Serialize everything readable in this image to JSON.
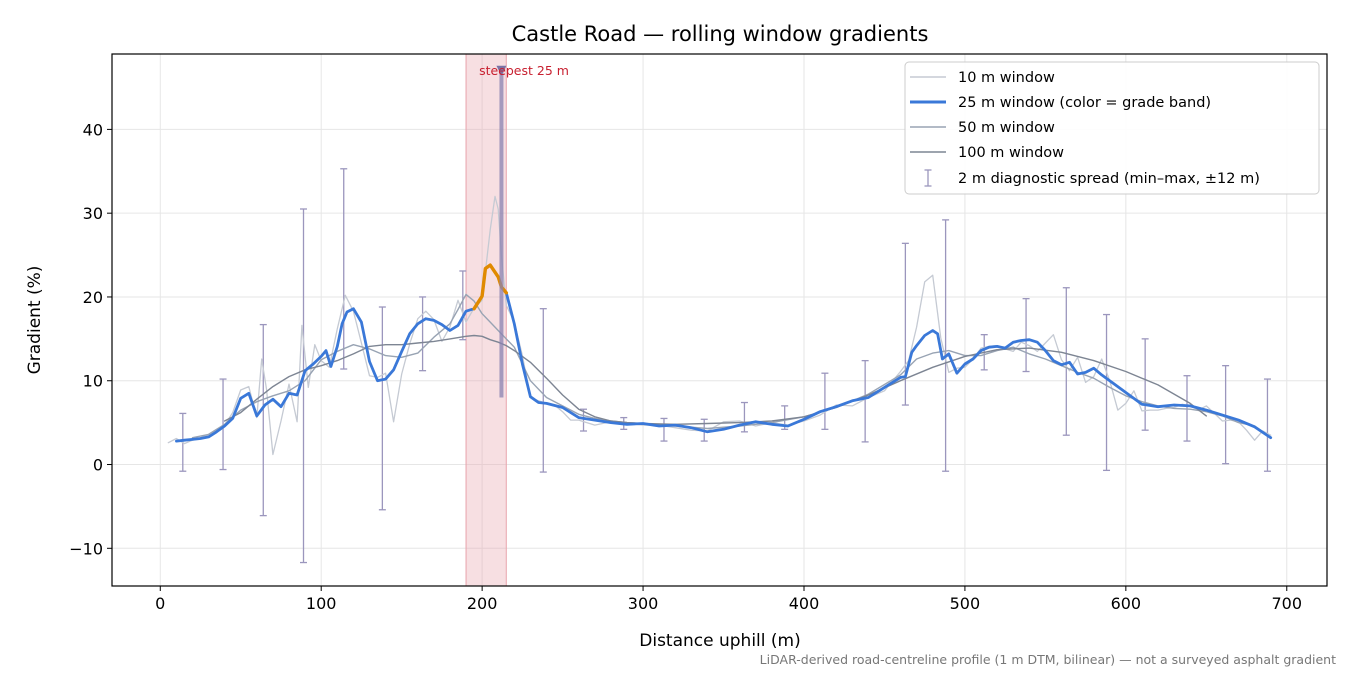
{
  "chart_data": {
    "type": "line",
    "title": "Castle Road — rolling window gradients",
    "xlabel": "Distance uphill (m)",
    "ylabel": "Gradient (%)",
    "xlim": [
      -30,
      725
    ],
    "ylim": [
      -14.5,
      49
    ],
    "xticks": [
      0,
      100,
      200,
      300,
      400,
      500,
      600,
      700
    ],
    "yticks": [
      -10,
      0,
      10,
      20,
      30,
      40
    ],
    "grid": true,
    "legend_placement": "upper right",
    "footnote": "LiDAR-derived road-centreline profile (1 m DTM, bilinear) — not a surveyed asphalt gradient",
    "highlight": {
      "label": "steepest 25 m",
      "x_range": [
        190,
        215
      ],
      "marker": {
        "x": 212,
        "y_min": 8,
        "y_max": 47
      }
    },
    "colors": {
      "w10": "#c5cad3",
      "w25": "#3a78d8",
      "w25_steep": "#e08a00",
      "w50": "#98a3b3",
      "w100": "#7d8593",
      "errorbars": "#9b96bd",
      "highlight": "#e8a3ab",
      "annotation": "#c82030"
    },
    "series": [
      {
        "name": "10 m window",
        "x": [
          5,
          10,
          15,
          20,
          25,
          30,
          35,
          40,
          45,
          50,
          55,
          60,
          63,
          66,
          70,
          75,
          80,
          85,
          88,
          92,
          96,
          100,
          105,
          110,
          115,
          120,
          125,
          130,
          135,
          140,
          145,
          150,
          155,
          160,
          165,
          170,
          175,
          180,
          185,
          190,
          195,
          200,
          205,
          208,
          210,
          212,
          215,
          220,
          225,
          230,
          235,
          240,
          245,
          250,
          255,
          260,
          270,
          280,
          290,
          300,
          310,
          320,
          330,
          340,
          350,
          360,
          370,
          380,
          390,
          400,
          410,
          420,
          430,
          440,
          450,
          460,
          465,
          470,
          475,
          480,
          485,
          490,
          495,
          500,
          505,
          510,
          515,
          520,
          525,
          530,
          535,
          540,
          545,
          550,
          555,
          560,
          565,
          570,
          575,
          580,
          585,
          590,
          595,
          600,
          605,
          610,
          615,
          620,
          625,
          630,
          635,
          640,
          645,
          650,
          655,
          660,
          665,
          670,
          675,
          680,
          685,
          690
        ],
        "y": [
          2.6,
          3.1,
          2.5,
          2.9,
          3.2,
          3.6,
          4.2,
          4.7,
          6.2,
          8.9,
          9.3,
          5.6,
          12.6,
          9.0,
          1.2,
          5.2,
          9.6,
          5.1,
          16.6,
          9.2,
          14.3,
          12.4,
          11.6,
          16.2,
          20.2,
          18.3,
          14.5,
          10.6,
          10.4,
          10.9,
          5.1,
          10.8,
          14.4,
          17.4,
          18.3,
          17.3,
          14.7,
          16.4,
          19.6,
          17.0,
          18.7,
          19.6,
          28.0,
          32.0,
          30.5,
          25.0,
          19.0,
          17.0,
          13.0,
          8.0,
          7.6,
          7.3,
          7.1,
          6.3,
          5.3,
          5.3,
          4.7,
          5.1,
          4.9,
          4.7,
          4.7,
          4.4,
          4.1,
          4.0,
          5.1,
          5.2,
          4.6,
          5.0,
          4.7,
          5.2,
          5.9,
          7.1,
          7.0,
          8.0,
          8.8,
          11.1,
          12.4,
          16.4,
          21.8,
          22.6,
          15.1,
          11.0,
          11.5,
          11.6,
          12.6,
          13.9,
          14.1,
          14.2,
          13.8,
          13.5,
          14.6,
          14.2,
          13.5,
          14.5,
          15.5,
          12.5,
          11.2,
          12.8,
          9.8,
          10.5,
          12.6,
          10.0,
          6.5,
          7.3,
          8.8,
          6.4,
          6.5,
          6.5,
          6.7,
          6.8,
          7.2,
          7.0,
          6.5,
          7.0,
          6.1,
          5.2,
          5.3,
          5.1,
          4.1,
          2.9,
          4.0,
          3.5
        ]
      },
      {
        "name": "25 m window (color = grade band)",
        "x": [
          10,
          15,
          20,
          25,
          30,
          35,
          40,
          45,
          50,
          55,
          60,
          65,
          70,
          75,
          80,
          85,
          90,
          95,
          100,
          103,
          106,
          110,
          113,
          116,
          120,
          125,
          130,
          135,
          140,
          145,
          150,
          155,
          160,
          165,
          170,
          175,
          180,
          185,
          190,
          195,
          200,
          202,
          205,
          210,
          212,
          215,
          220,
          225,
          230,
          235,
          240,
          250,
          260,
          270,
          280,
          290,
          300,
          310,
          320,
          330,
          340,
          350,
          360,
          370,
          380,
          390,
          400,
          410,
          420,
          430,
          440,
          450,
          460,
          463,
          467,
          470,
          475,
          480,
          483,
          486,
          490,
          495,
          500,
          505,
          510,
          515,
          520,
          525,
          530,
          535,
          540,
          545,
          550,
          555,
          560,
          565,
          570,
          575,
          580,
          585,
          590,
          600,
          610,
          620,
          630,
          640,
          650,
          660,
          670,
          680,
          690
        ],
        "y": [
          2.8,
          2.9,
          3.0,
          3.1,
          3.3,
          3.9,
          4.6,
          5.5,
          7.9,
          8.5,
          5.8,
          7.1,
          7.8,
          6.9,
          8.5,
          8.3,
          11.2,
          12.0,
          12.9,
          13.6,
          11.7,
          14.1,
          16.8,
          18.2,
          18.6,
          17.0,
          12.3,
          10.0,
          10.2,
          11.3,
          13.5,
          15.6,
          16.8,
          17.4,
          17.2,
          16.7,
          16.0,
          16.6,
          18.3,
          18.6,
          20.1,
          23.4,
          23.8,
          22.4,
          21.2,
          20.5,
          16.8,
          12.0,
          8.1,
          7.4,
          7.3,
          6.8,
          5.6,
          5.3,
          5.0,
          4.8,
          4.9,
          4.6,
          4.7,
          4.4,
          3.9,
          4.2,
          4.7,
          5.1,
          4.8,
          4.6,
          5.4,
          6.3,
          6.9,
          7.6,
          8.0,
          9.2,
          10.4,
          10.5,
          13.4,
          14.2,
          15.4,
          16.0,
          15.6,
          12.6,
          13.2,
          10.9,
          12.0,
          12.6,
          13.6,
          14.0,
          14.1,
          13.9,
          14.6,
          14.8,
          14.9,
          14.6,
          13.6,
          12.4,
          11.9,
          12.2,
          10.8,
          11.0,
          11.5,
          10.7,
          10.0,
          8.6,
          7.2,
          6.9,
          7.1,
          7.0,
          6.5,
          5.9,
          5.3,
          4.5,
          3.2
        ]
      },
      {
        "name": "50 m window",
        "x": [
          20,
          30,
          40,
          50,
          60,
          70,
          80,
          90,
          100,
          110,
          120,
          130,
          140,
          150,
          160,
          170,
          180,
          185,
          190,
          195,
          200,
          205,
          210,
          220,
          230,
          240,
          250,
          260,
          270,
          280,
          290,
          300,
          320,
          340,
          360,
          380,
          400,
          420,
          440,
          460,
          470,
          480,
          490,
          500,
          510,
          520,
          530,
          540,
          550,
          560,
          570,
          580,
          590,
          600,
          610,
          620,
          630,
          640,
          650,
          660,
          670,
          680
        ],
        "y": [
          3.2,
          3.6,
          4.8,
          6.5,
          7.5,
          8.2,
          8.8,
          10.0,
          12.5,
          13.5,
          14.3,
          13.8,
          13.0,
          12.8,
          13.3,
          15.2,
          16.8,
          18.5,
          20.3,
          19.5,
          18.0,
          17.0,
          16.0,
          14.0,
          10.0,
          8.0,
          7.0,
          6.0,
          5.5,
          5.2,
          5.0,
          4.9,
          4.6,
          4.3,
          4.6,
          5.0,
          5.7,
          6.8,
          8.4,
          10.7,
          12.6,
          13.3,
          13.6,
          13.0,
          13.0,
          13.6,
          14.0,
          13.2,
          12.6,
          11.8,
          11.0,
          10.3,
          9.2,
          8.2,
          7.5,
          7.0,
          6.7,
          6.6,
          6.3,
          5.8,
          5.0,
          4.6
        ]
      },
      {
        "name": "100 m window",
        "x": [
          40,
          50,
          60,
          70,
          80,
          90,
          100,
          110,
          120,
          130,
          140,
          150,
          160,
          170,
          180,
          190,
          195,
          200,
          205,
          210,
          215,
          220,
          230,
          240,
          250,
          260,
          270,
          280,
          290,
          300,
          320,
          340,
          360,
          380,
          400,
          420,
          440,
          460,
          480,
          500,
          520,
          540,
          560,
          580,
          600,
          620,
          640,
          650
        ],
        "y": [
          5.2,
          6.2,
          7.8,
          9.3,
          10.5,
          11.3,
          11.8,
          12.4,
          13.2,
          14.1,
          14.3,
          14.3,
          14.5,
          14.7,
          15.0,
          15.3,
          15.4,
          15.3,
          14.9,
          14.6,
          14.2,
          13.6,
          12.2,
          10.3,
          8.3,
          6.6,
          5.7,
          5.2,
          5.0,
          4.9,
          4.8,
          4.9,
          5.0,
          5.2,
          5.7,
          6.8,
          8.3,
          10.0,
          11.6,
          12.9,
          13.7,
          13.9,
          13.4,
          12.4,
          11.1,
          9.5,
          7.3,
          5.8
        ]
      }
    ],
    "steep_segment": {
      "x": [
        195,
        200,
        202,
        205,
        210,
        212,
        215
      ],
      "y": [
        18.6,
        20.1,
        23.4,
        23.8,
        22.4,
        21.2,
        20.5
      ]
    },
    "errorbars": {
      "name": "2 m diagnostic spread (min–max, ±12 m)",
      "x": [
        14,
        39,
        64,
        89,
        114,
        138,
        163,
        188,
        238,
        263,
        288,
        313,
        338,
        363,
        388,
        413,
        438,
        463,
        488,
        512,
        538,
        563,
        588,
        612,
        638,
        662,
        688
      ],
      "ymin": [
        -0.8,
        -0.6,
        -6.1,
        -11.7,
        11.4,
        -5.4,
        11.2,
        14.9,
        -0.9,
        4.0,
        4.2,
        2.8,
        2.8,
        3.9,
        4.2,
        4.2,
        2.7,
        7.1,
        -0.8,
        11.3,
        11.1,
        3.5,
        -0.7,
        4.1,
        2.8,
        0.1,
        -0.8
      ],
      "ymax": [
        6.1,
        10.2,
        16.7,
        30.5,
        35.3,
        18.8,
        20.0,
        23.1,
        18.6,
        6.6,
        5.6,
        5.5,
        5.4,
        7.4,
        7.0,
        10.9,
        12.4,
        26.4,
        29.2,
        15.5,
        19.8,
        21.1,
        17.9,
        15.0,
        10.6,
        11.8,
        10.2
      ]
    }
  }
}
